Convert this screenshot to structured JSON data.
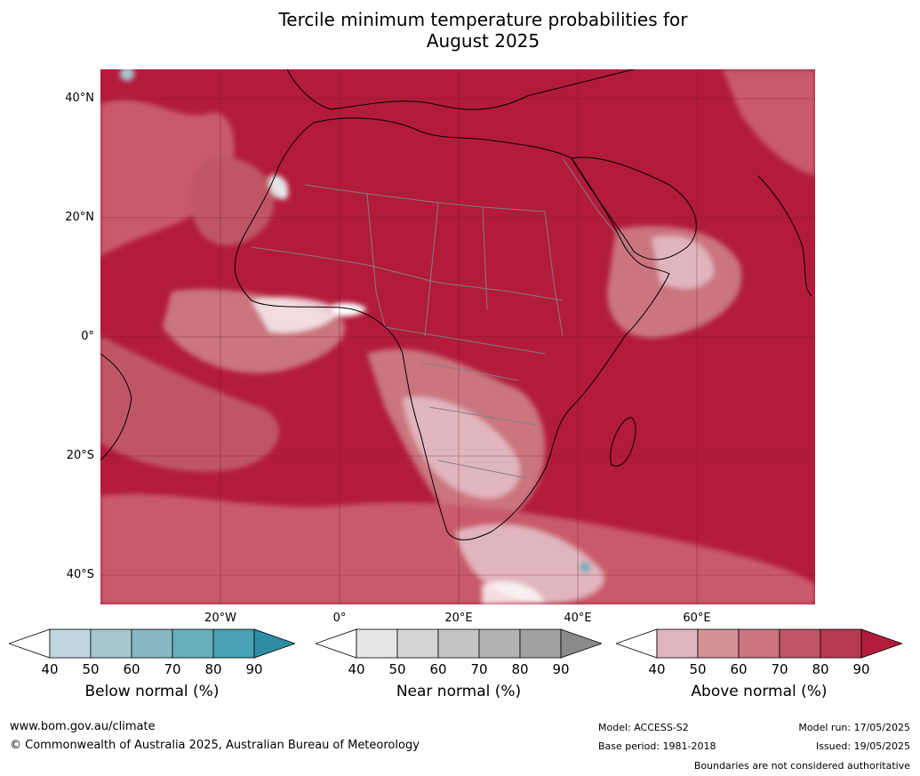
{
  "title": {
    "line1": "Tercile minimum temperature probabilities for",
    "line2": "August 2025"
  },
  "map": {
    "latitude_labels": [
      "40°N",
      "20°N",
      "0°",
      "20°S",
      "40°S"
    ],
    "longitude_labels": [
      "20°W",
      "0°",
      "20°E",
      "40°E",
      "60°E"
    ],
    "colors": {
      "ocean_base": "#b31b3c",
      "coastline": "#000000",
      "borders": "#808080",
      "gridlines": "#5a1020"
    }
  },
  "legends": [
    {
      "caption": "Below normal (%)",
      "ticks": [
        "40",
        "50",
        "60",
        "70",
        "80",
        "90"
      ],
      "colors": [
        "#ffffff",
        "#c0d6de",
        "#a6c7cf",
        "#88b8c4",
        "#6aaebc",
        "#47a0b3",
        "#2d8ea6"
      ]
    },
    {
      "caption": "Near normal (%)",
      "ticks": [
        "40",
        "50",
        "60",
        "70",
        "80",
        "90"
      ],
      "colors": [
        "#ffffff",
        "#e5e5e5",
        "#d4d4d4",
        "#c4c4c4",
        "#b3b3b3",
        "#a0a0a0",
        "#8a8a8a"
      ]
    },
    {
      "caption": "Above normal (%)",
      "ticks": [
        "40",
        "50",
        "60",
        "70",
        "80",
        "90"
      ],
      "colors": [
        "#ffffff",
        "#e1b5bd",
        "#d69199",
        "#ca7580",
        "#bf5668",
        "#b63b51",
        "#b31b3c"
      ]
    }
  ],
  "footer": {
    "website": "www.bom.gov.au/climate",
    "copyright": "© Commonwealth of Australia 2025, Australian Bureau of Meteorology",
    "model": "Model: ACCESS-S2",
    "base_period": "Base period: 1981-2018",
    "model_run": "Model run: 17/05/2025",
    "issued": "Issued: 19/05/2025",
    "disclaimer": "Boundaries are not considered authoritative"
  }
}
